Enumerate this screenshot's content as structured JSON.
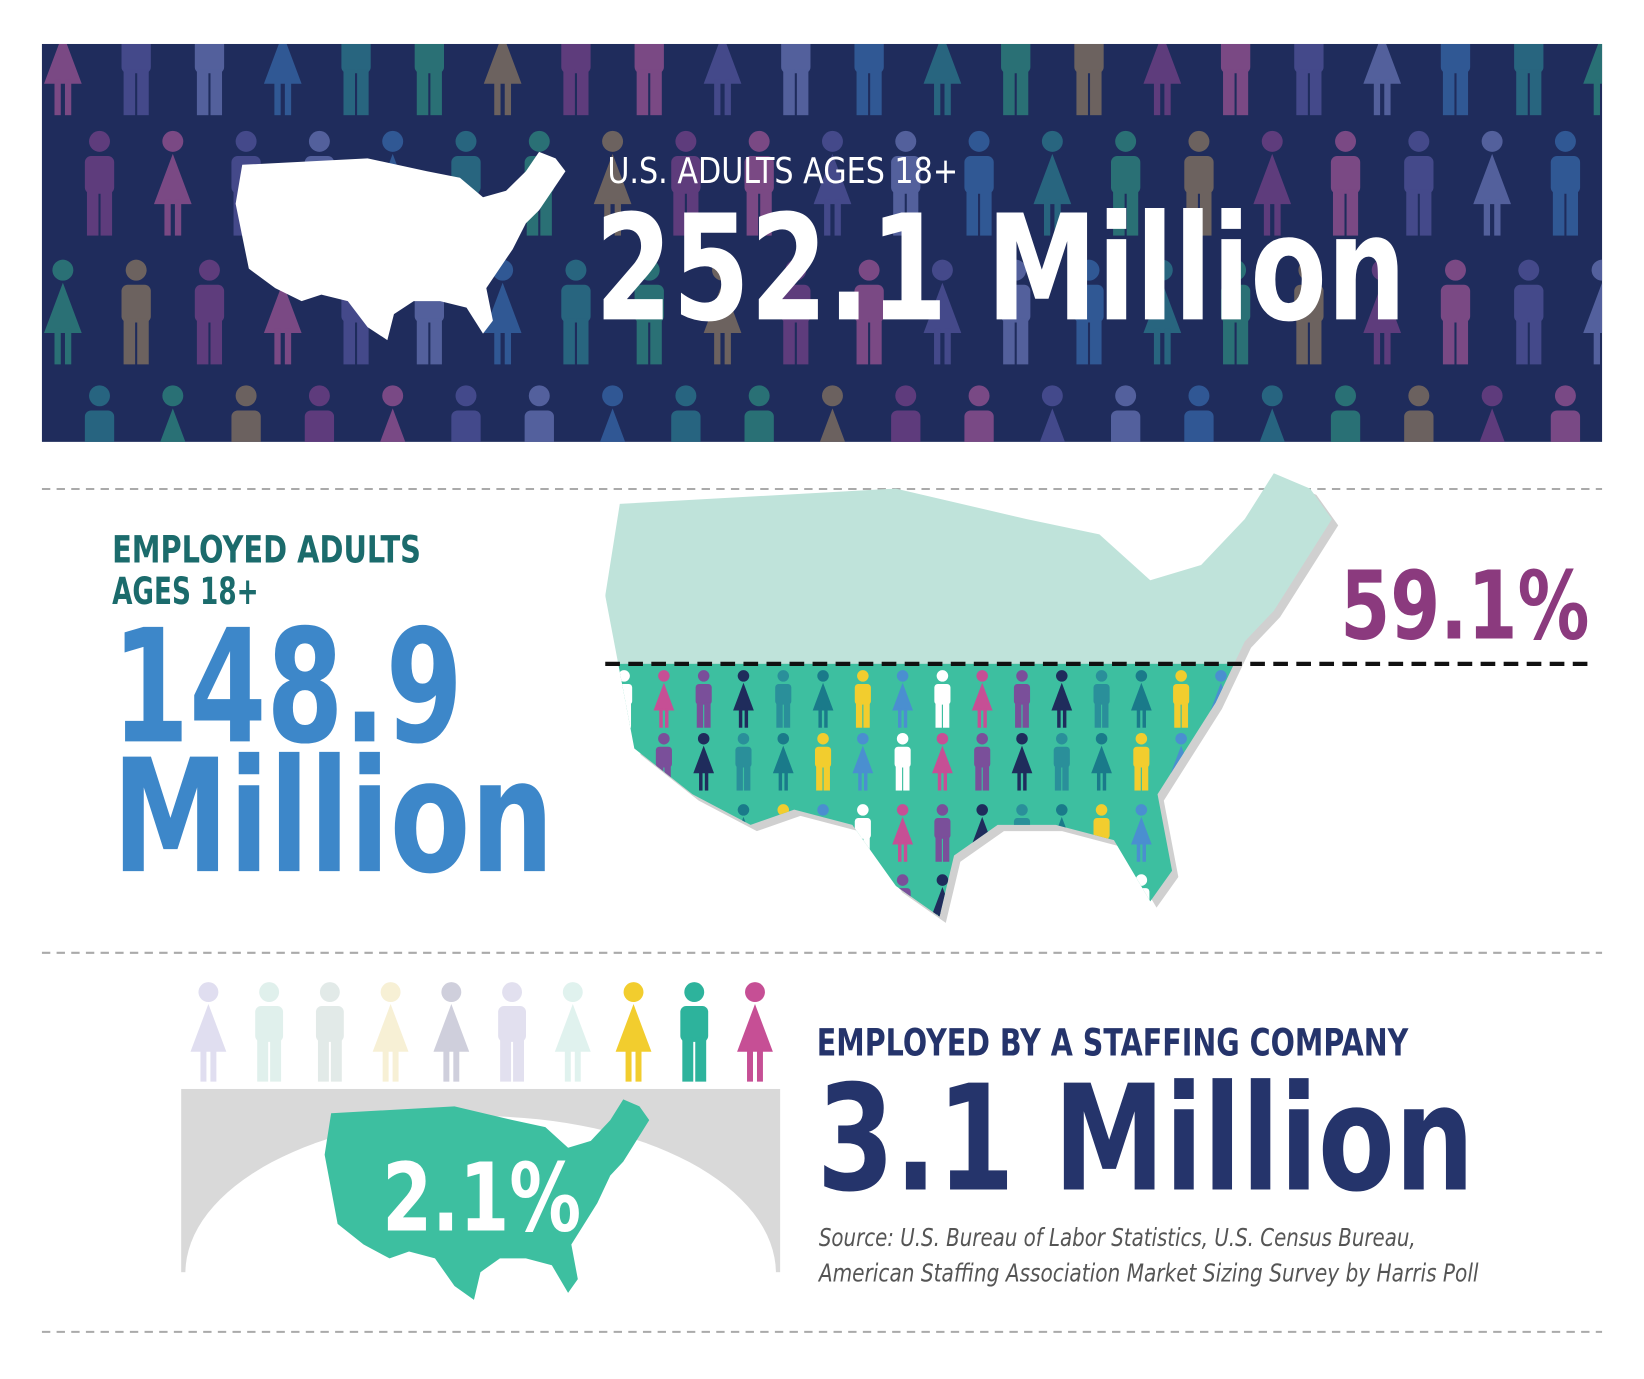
{
  "banner": {
    "label": "U.S. ADULTS AGES 18+",
    "value": "252.1 Million"
  },
  "employed": {
    "label_lines": [
      "EMPLOYED ADULTS",
      "AGES 18+"
    ],
    "value_lines": [
      "148.9",
      "Million"
    ],
    "share": "59.1%"
  },
  "staffing": {
    "label": "EMPLOYED BY A STAFFING COMPANY",
    "value": "3.1 Million",
    "share": "2.1%"
  },
  "source": [
    "Source: U.S. Bureau of Labor Statistics, U.S. Census Bureau,",
    "American Staffing Association Market Sizing Survey by Harris Poll"
  ]
}
